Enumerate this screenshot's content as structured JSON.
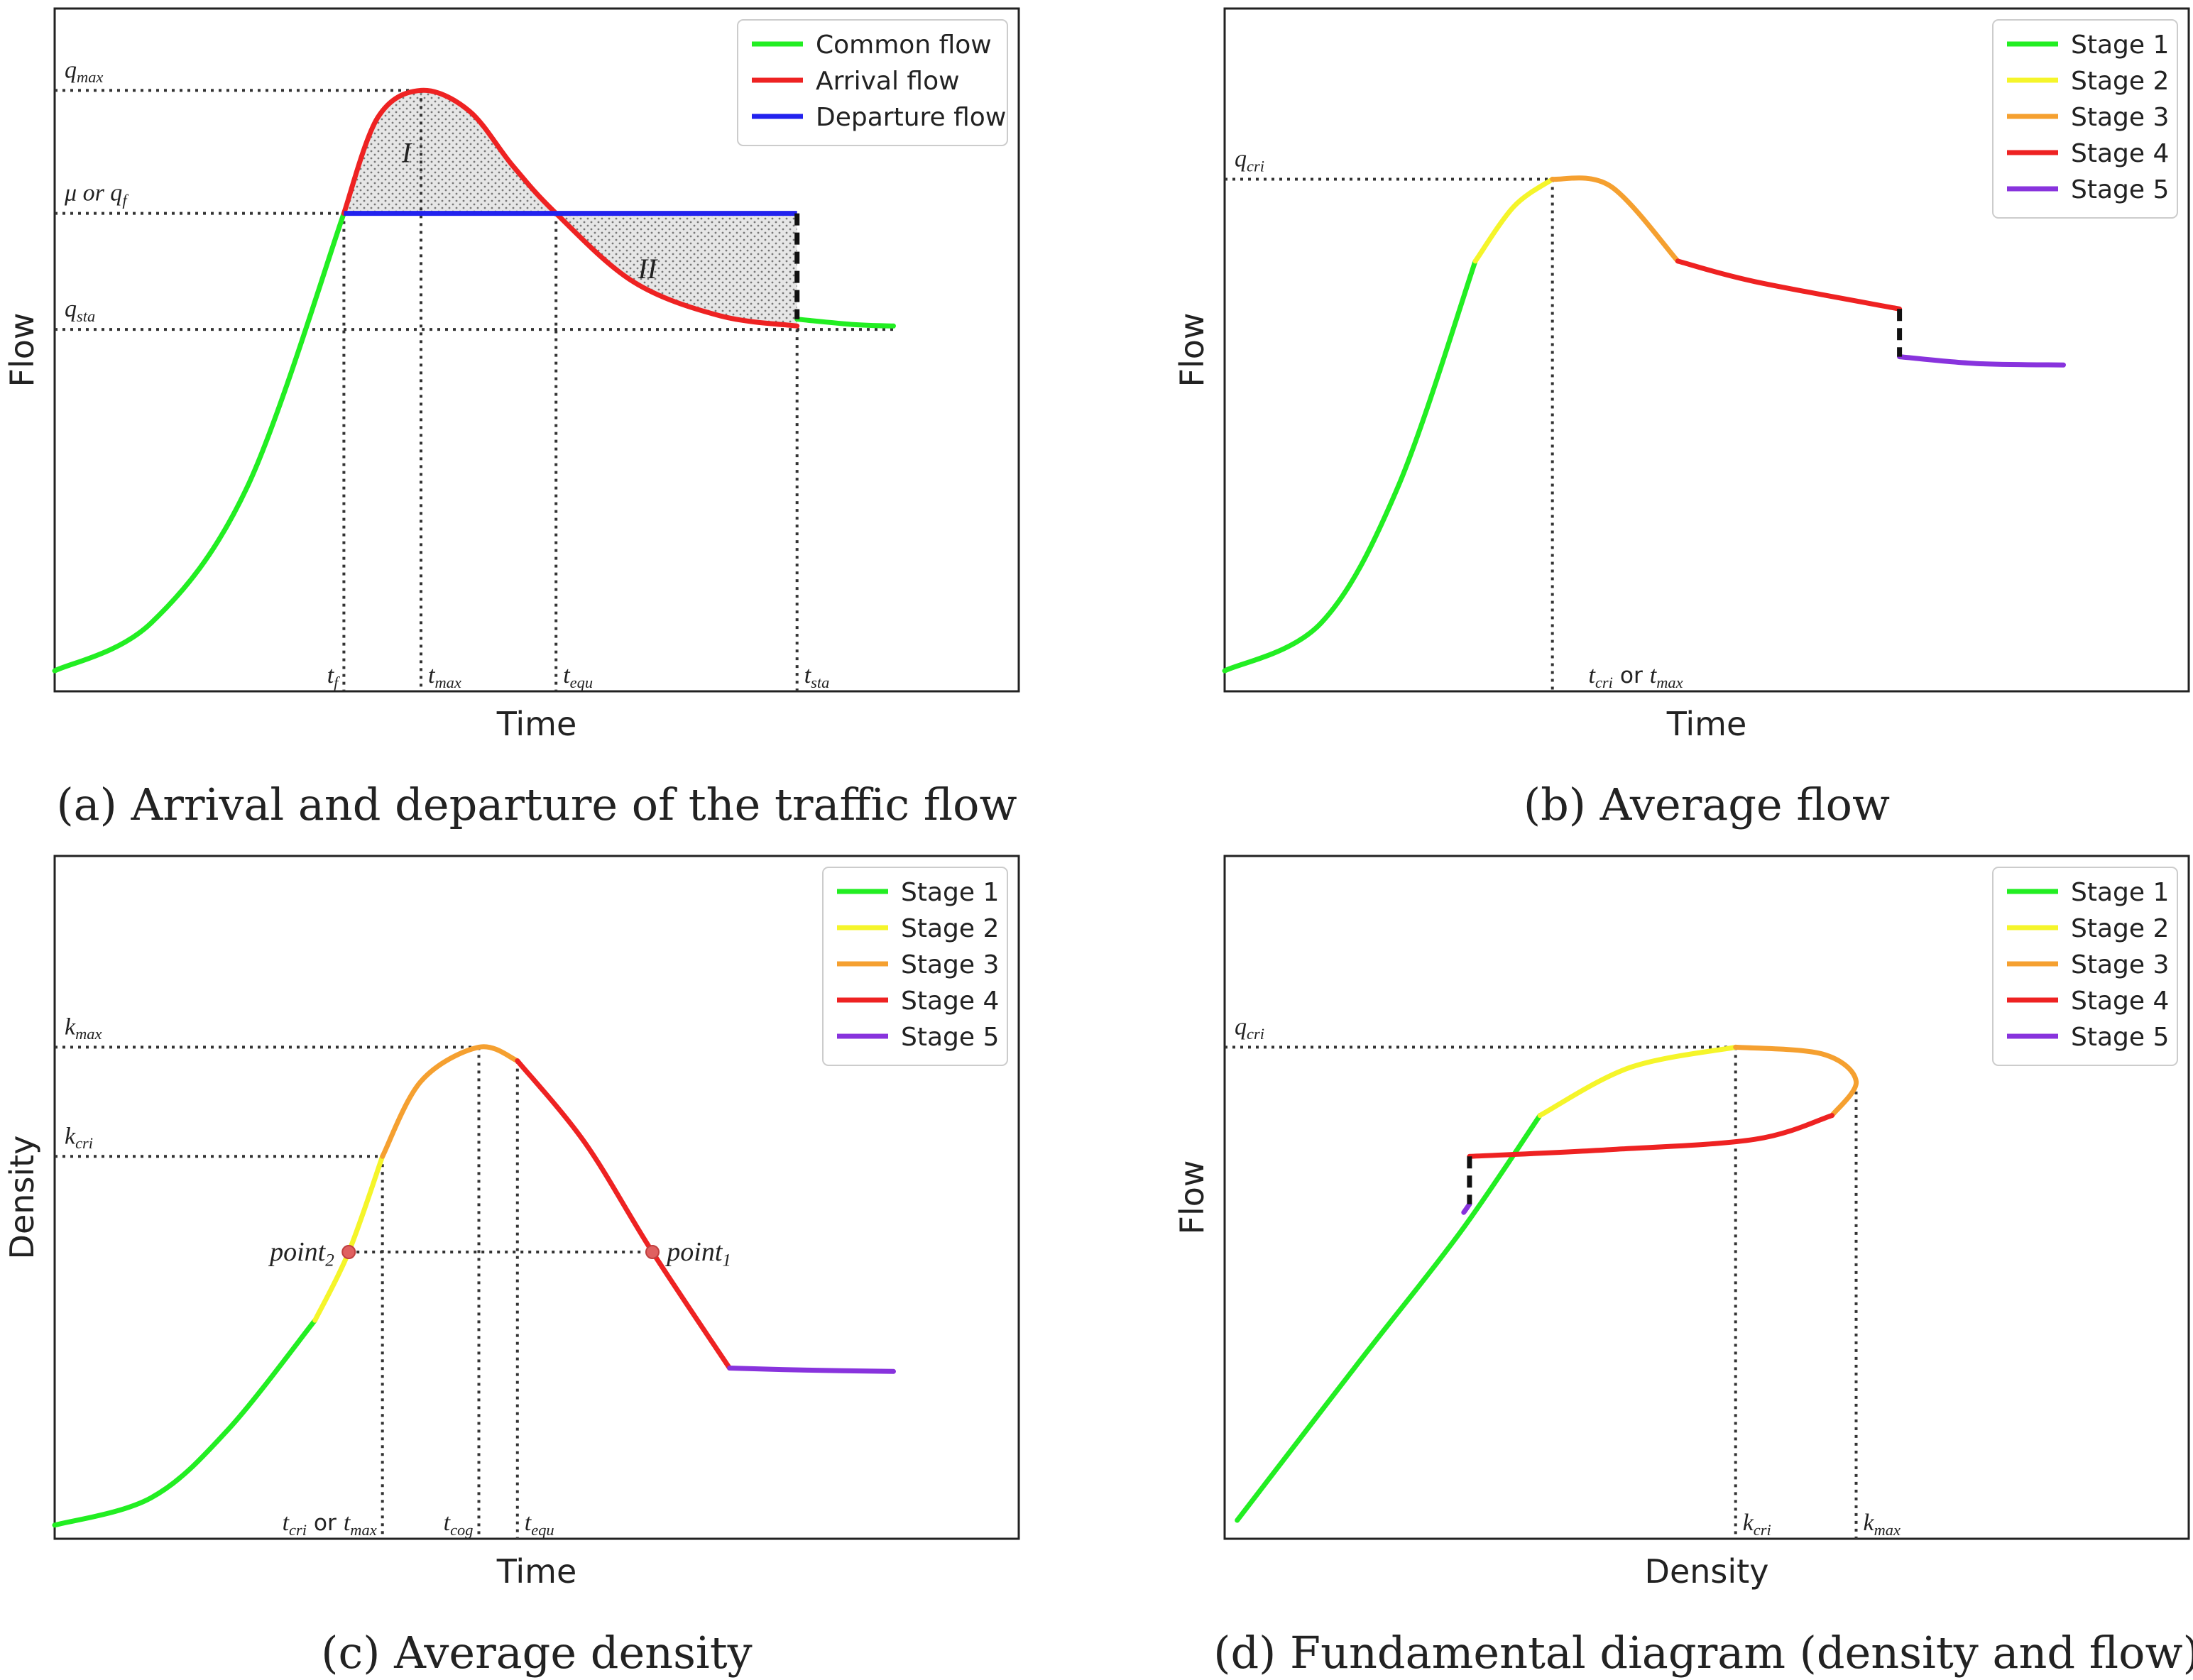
{
  "chart_data": [
    {
      "id": "a",
      "type": "line",
      "caption": "(a) Arrival and departure of the traffic flow",
      "xlabel": "Time",
      "ylabel": "Flow",
      "legend": "top-right",
      "series": [
        {
          "name": "Common flow",
          "color": "#22ee22"
        },
        {
          "name": "Arrival flow",
          "color": "#ee2222"
        },
        {
          "name": "Departure flow",
          "color": "#2222ee"
        }
      ],
      "x_ticks": [
        {
          "x": 0.3,
          "main": "t",
          "sub": "f"
        },
        {
          "x": 0.38,
          "main": "t",
          "sub": "max"
        },
        {
          "x": 0.52,
          "main": "t",
          "sub": "equ"
        },
        {
          "x": 0.77,
          "main": "t",
          "sub": "sta"
        }
      ],
      "y_ticks": [
        {
          "y": 0.88,
          "main": "q",
          "sub": "max"
        },
        {
          "y": 0.7,
          "main": "μ or q",
          "sub": "f"
        },
        {
          "y": 0.53,
          "main": "q",
          "sub": "sta"
        }
      ],
      "regions": [
        {
          "label": "I"
        },
        {
          "label": "II"
        }
      ]
    },
    {
      "id": "b",
      "type": "line",
      "caption": "(b) Average flow",
      "xlabel": "Time",
      "ylabel": "Flow",
      "legend": "top-right",
      "series": [
        {
          "name": "Stage 1",
          "color": "#22ee22"
        },
        {
          "name": "Stage 2",
          "color": "#f5f52a"
        },
        {
          "name": "Stage 3",
          "color": "#f5a030"
        },
        {
          "name": "Stage 4",
          "color": "#ee2222"
        },
        {
          "name": "Stage 5",
          "color": "#8833dd"
        }
      ],
      "x_ticks": [
        {
          "x": 0.37,
          "main": "t",
          "sub": "cri",
          "mid": " or ",
          "main2": "t",
          "sub2": "max"
        }
      ],
      "y_ticks": [
        {
          "y": 0.75,
          "main": "q",
          "sub": "cri"
        }
      ]
    },
    {
      "id": "c",
      "type": "line",
      "caption": "(c) Average density",
      "xlabel": "Time",
      "ylabel": "Density",
      "legend": "top-right",
      "series": [
        {
          "name": "Stage 1",
          "color": "#22ee22"
        },
        {
          "name": "Stage 2",
          "color": "#f5f52a"
        },
        {
          "name": "Stage 3",
          "color": "#f5a030"
        },
        {
          "name": "Stage 4",
          "color": "#ee2222"
        },
        {
          "name": "Stage 5",
          "color": "#8833dd"
        }
      ],
      "x_ticks": [
        {
          "x": 0.34,
          "main": "t",
          "sub": "cri",
          "mid": " or ",
          "main2": "t",
          "sub2": "max"
        },
        {
          "x": 0.44,
          "main": "t",
          "sub": "cog"
        },
        {
          "x": 0.48,
          "main": "t",
          "sub": "equ"
        }
      ],
      "y_ticks": [
        {
          "y": 0.72,
          "main": "k",
          "sub": "max"
        },
        {
          "y": 0.56,
          "main": "k",
          "sub": "cri"
        }
      ],
      "points": [
        {
          "main": "point",
          "sub": "2"
        },
        {
          "main": "point",
          "sub": "1"
        }
      ]
    },
    {
      "id": "d",
      "type": "line",
      "caption": "(d) Fundamental diagram (density and flow)",
      "xlabel": "Density",
      "ylabel": "Flow",
      "legend": "top-right",
      "series": [
        {
          "name": "Stage 1",
          "color": "#22ee22"
        },
        {
          "name": "Stage 2",
          "color": "#f5f52a"
        },
        {
          "name": "Stage 3",
          "color": "#f5a030"
        },
        {
          "name": "Stage 4",
          "color": "#ee2222"
        },
        {
          "name": "Stage 5",
          "color": "#8833dd"
        }
      ],
      "x_ticks": [
        {
          "x": 0.53,
          "main": "k",
          "sub": "cri"
        },
        {
          "x": 0.655,
          "main": "k",
          "sub": "max"
        }
      ],
      "y_ticks": [
        {
          "y": 0.72,
          "main": "q",
          "sub": "cri"
        }
      ]
    }
  ]
}
